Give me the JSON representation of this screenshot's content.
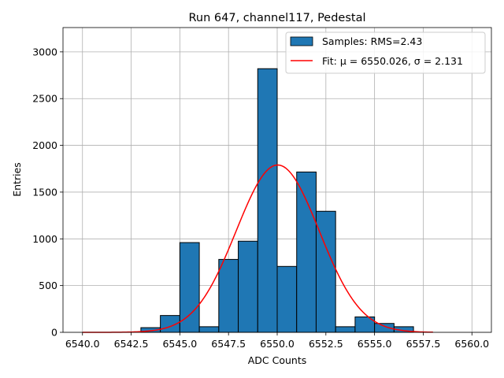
{
  "chart_data": {
    "type": "bar",
    "title": "Run 647, channel117, Pedestal",
    "xlabel": "ADC Counts",
    "ylabel": "Entries",
    "xlim": [
      6539.0,
      6561.0
    ],
    "ylim": [
      0,
      3260
    ],
    "grid": true,
    "legend_placement": "top-right",
    "xticks": [
      6540.0,
      6542.5,
      6545.0,
      6547.5,
      6550.0,
      6552.5,
      6555.0,
      6557.5,
      6560.0
    ],
    "xtick_labels": [
      "6540.0",
      "6542.5",
      "6545.0",
      "6547.5",
      "6550.0",
      "6552.5",
      "6555.0",
      "6557.5",
      "6560.0"
    ],
    "yticks": [
      0,
      500,
      1000,
      1500,
      2000,
      2500,
      3000
    ],
    "ytick_labels": [
      "0",
      "500",
      "1000",
      "1500",
      "2000",
      "2500",
      "3000"
    ],
    "bin_width": 1.0,
    "series": [
      {
        "name": "Samples: RMS=2.43",
        "kind": "histogram",
        "color": "#1f77b4",
        "edgecolor": "#000000",
        "bin_starts": [
          6543,
          6544,
          6545,
          6546,
          6547,
          6548,
          6549,
          6550,
          6551,
          6552,
          6553,
          6554,
          6555,
          6556
        ],
        "values": [
          50,
          180,
          960,
          60,
          780,
          975,
          2820,
          705,
          1715,
          1295,
          60,
          165,
          95,
          60
        ]
      },
      {
        "name": "Fit: μ = 6550.026, σ = 2.131",
        "kind": "gaussian",
        "color": "#ff0000",
        "mu": 6550.026,
        "sigma": 2.131,
        "amplitude": 1790,
        "x_range": [
          6540.0,
          6558.0
        ]
      }
    ]
  }
}
